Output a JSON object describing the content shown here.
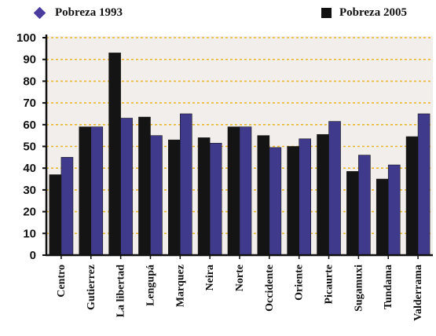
{
  "chart_data": {
    "type": "bar",
    "categories": [
      "Centro",
      "Gutierrez",
      "La libertad",
      "Lengupá",
      "Marquez",
      "Neira",
      "Norte",
      "Occidente",
      "Oriente",
      "Picaurte",
      "Sugamuxi",
      "Tundama",
      "Valderrama"
    ],
    "series": [
      {
        "name": "Pobreza 2005",
        "color": "#141414",
        "values": [
          37,
          59,
          93,
          63.5,
          53,
          54,
          59,
          55,
          50,
          55.5,
          38.5,
          35,
          54.5
        ]
      },
      {
        "name": "Pobreza 1993",
        "color": "#3f3a8c",
        "values": [
          45,
          59,
          63,
          55,
          65,
          51.5,
          59,
          49.5,
          53.5,
          61.5,
          46,
          41.5,
          65
        ]
      }
    ],
    "ylim": [
      0,
      100
    ],
    "yticks": [
      0,
      10,
      20,
      30,
      40,
      50,
      60,
      70,
      80,
      90,
      100
    ],
    "grid": true,
    "grid_color": "#e9b830",
    "plot_background": "#f2eeec",
    "legend": {
      "position": "top",
      "entries": [
        {
          "label": "Pobreza 1993",
          "marker": "diamond",
          "color": "#4a3c9c"
        },
        {
          "label": "Pobreza 2005",
          "marker": "square",
          "color": "#111111"
        }
      ]
    }
  }
}
